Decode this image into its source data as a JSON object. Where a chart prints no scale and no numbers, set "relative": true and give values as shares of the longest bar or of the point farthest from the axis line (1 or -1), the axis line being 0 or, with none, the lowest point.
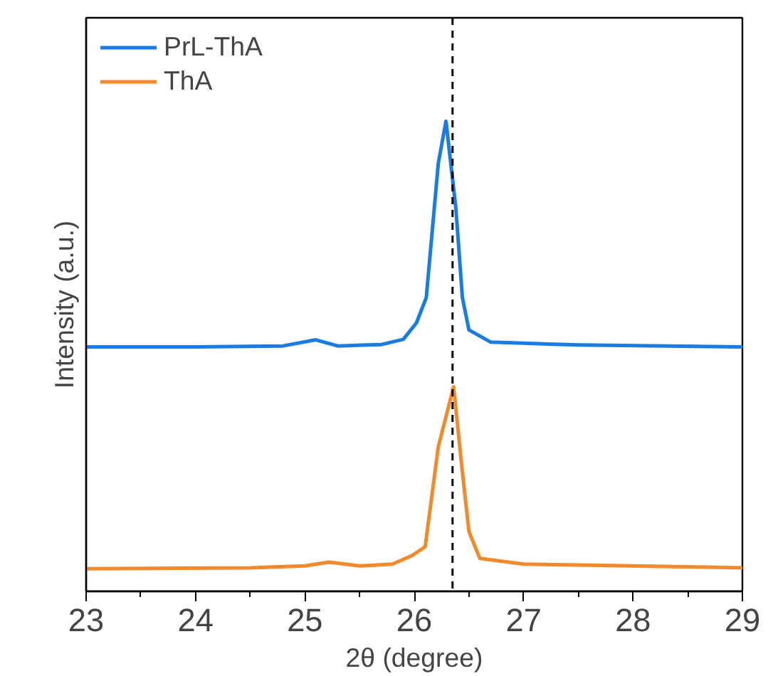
{
  "chart_data": {
    "type": "line",
    "xlabel": "2θ (degree)",
    "ylabel": "Intensity (a.u.)",
    "relative": true,
    "xlim": [
      23,
      29
    ],
    "xticks": [
      23,
      24,
      25,
      26,
      27,
      28,
      29
    ],
    "tick_labels": "x",
    "legend": "top left",
    "grid": false,
    "series": [
      {
        "name": "PrL-ThA",
        "color": "#1a7be0",
        "x": [
          23,
          24,
          24.8,
          25.1,
          25.3,
          25.7,
          25.9,
          26.02,
          26.11,
          26.22,
          26.29,
          26.38,
          26.44,
          26.5,
          26.7,
          27.5,
          29
        ],
        "values": [
          0.52,
          0.52,
          0.522,
          0.535,
          0.522,
          0.525,
          0.536,
          0.571,
          0.625,
          0.911,
          1.0,
          0.816,
          0.625,
          0.556,
          0.53,
          0.524,
          0.52
        ]
      },
      {
        "name": "ThA",
        "color": "#f08a2c",
        "x": [
          23,
          24.5,
          25.0,
          25.22,
          25.5,
          25.8,
          25.98,
          26.1,
          26.22,
          26.36,
          26.44,
          26.5,
          26.6,
          27,
          28,
          29
        ],
        "values": [
          0.048,
          0.05,
          0.054,
          0.062,
          0.054,
          0.058,
          0.076,
          0.095,
          0.308,
          0.435,
          0.254,
          0.127,
          0.07,
          0.058,
          0.054,
          0.05
        ]
      }
    ],
    "ref_lines": [
      {
        "axis": "x",
        "value": 26.35,
        "color": "#000000",
        "line_style": "dashed"
      }
    ]
  }
}
